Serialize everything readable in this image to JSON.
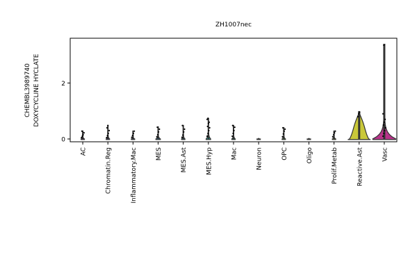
{
  "chart_data": {
    "type": "violin",
    "title": "ZH1007nec",
    "ylabel_lines": [
      "CHEMBL3989740",
      "DOXYCYCLINE HYCLATE"
    ],
    "xlabel": "",
    "ylim": [
      -0.1,
      3.6
    ],
    "yticks": [
      0,
      2
    ],
    "grid": false,
    "categories": [
      "AC",
      "Chromatin.Reg",
      "Inflammatory.Mac",
      "MES",
      "MES.Ast",
      "MES.Hyp",
      "Mac",
      "Neuron",
      "OPC",
      "Oligo",
      "Prolif.Metab",
      "Reactive.Ast",
      "Vasc"
    ],
    "colors": [
      "#6b2d87",
      "#4a3f8f",
      "#3d5b9a",
      "#2f6e96",
      "#2a7f8e",
      "#25908a",
      "#2aa07e",
      "#3cb470",
      "#6cc55a",
      "#9ed041",
      "#c8d83a",
      "#c9c83a",
      "#b8338a"
    ],
    "violins": [
      {
        "max": 0.3,
        "width": 0.15,
        "points": [
          0.05,
          0.1,
          0.15,
          0.22,
          0.28
        ]
      },
      {
        "max": 0.5,
        "width": 0.15,
        "points": [
          0.05,
          0.12,
          0.2,
          0.3,
          0.4,
          0.48
        ]
      },
      {
        "max": 0.3,
        "width": 0.15,
        "points": [
          0.06,
          0.12,
          0.2,
          0.28
        ]
      },
      {
        "max": 0.45,
        "width": 0.2,
        "points": [
          0.08,
          0.15,
          0.25,
          0.35,
          0.42
        ]
      },
      {
        "max": 0.5,
        "width": 0.15,
        "points": [
          0.06,
          0.14,
          0.25,
          0.35,
          0.48
        ]
      },
      {
        "max": 0.75,
        "width": 0.2,
        "points": [
          0.1,
          0.2,
          0.3,
          0.4,
          0.45,
          0.55,
          0.6,
          0.7,
          0.74
        ]
      },
      {
        "max": 0.5,
        "width": 0.15,
        "points": [
          0.1,
          0.2,
          0.3,
          0.42,
          0.48
        ]
      },
      {
        "max": 0.03,
        "width": 0.15,
        "points": []
      },
      {
        "max": 0.42,
        "width": 0.15,
        "points": [
          0.08,
          0.18,
          0.28,
          0.35,
          0.4
        ]
      },
      {
        "max": 0.03,
        "width": 0.15,
        "points": []
      },
      {
        "max": 0.3,
        "width": 0.15,
        "points": [
          0.08,
          0.15,
          0.22,
          0.28
        ]
      },
      {
        "max": 0.98,
        "width": 1.0,
        "points": [
          0.8,
          0.9,
          0.96
        ]
      },
      {
        "max": 3.4,
        "width": 1.0,
        "points": [
          0.1,
          0.2,
          0.3,
          0.4,
          0.5,
          0.6,
          0.7,
          0.9,
          3.35
        ]
      }
    ]
  }
}
